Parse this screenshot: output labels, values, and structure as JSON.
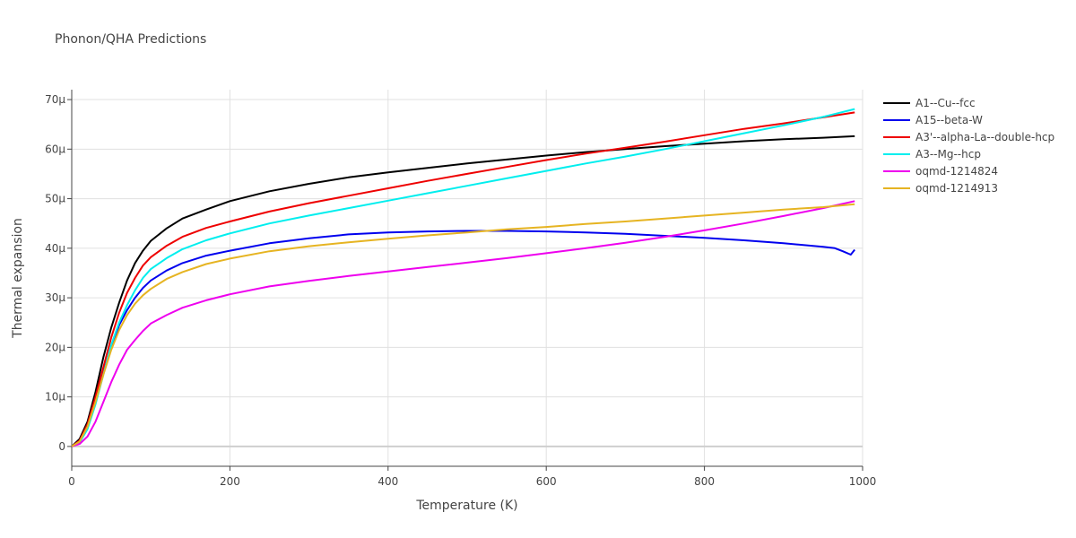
{
  "chart_data": {
    "type": "line",
    "title": "Phonon/QHA Predictions",
    "xlabel": "Temperature (K)",
    "ylabel": "Thermal expansion",
    "xlim": [
      0,
      1000
    ],
    "ylim": [
      -4,
      72
    ],
    "x_ticks": [
      0,
      200,
      400,
      600,
      800,
      1000
    ],
    "x_tick_labels": [
      "0",
      "200",
      "400",
      "600",
      "800",
      "1000"
    ],
    "y_ticks": [
      0,
      10,
      20,
      30,
      40,
      50,
      60,
      70
    ],
    "y_tick_labels": [
      "0",
      "10μ",
      "20μ",
      "30μ",
      "40μ",
      "50μ",
      "60μ",
      "70μ"
    ],
    "grid": true,
    "legend_position": "right",
    "series": [
      {
        "name": "A1--Cu--fcc",
        "color": "#000000",
        "x": [
          0,
          10,
          20,
          30,
          40,
          50,
          60,
          70,
          80,
          90,
          100,
          120,
          140,
          170,
          200,
          250,
          300,
          350,
          400,
          450,
          500,
          550,
          600,
          650,
          700,
          750,
          800,
          850,
          900,
          950,
          990
        ],
        "y": [
          0,
          1.5,
          5,
          11,
          18,
          24,
          29,
          33.5,
          37,
          39.5,
          41.5,
          44,
          46,
          47.8,
          49.5,
          51.5,
          53,
          54.3,
          55.3,
          56.2,
          57.1,
          57.9,
          58.7,
          59.4,
          60.0,
          60.6,
          61.1,
          61.6,
          62.0,
          62.3,
          62.6
        ]
      },
      {
        "name": "A15--beta-W",
        "color": "#0000ee",
        "x": [
          0,
          10,
          20,
          30,
          40,
          50,
          60,
          70,
          80,
          90,
          100,
          120,
          140,
          170,
          200,
          250,
          300,
          350,
          400,
          450,
          500,
          550,
          600,
          650,
          700,
          750,
          800,
          850,
          900,
          950,
          965,
          975,
          985,
          990
        ],
        "y": [
          0,
          1,
          4,
          9,
          15,
          20,
          24.5,
          27.5,
          30,
          32,
          33.5,
          35.5,
          37,
          38.5,
          39.5,
          41,
          42,
          42.8,
          43.2,
          43.4,
          43.5,
          43.5,
          43.4,
          43.2,
          42.9,
          42.5,
          42.1,
          41.6,
          41.0,
          40.3,
          40,
          39.4,
          38.7,
          39.7
        ]
      },
      {
        "name": "A3'--alpha-La--double-hcp",
        "color": "#ee0000",
        "x": [
          0,
          10,
          20,
          30,
          40,
          50,
          60,
          70,
          80,
          90,
          100,
          120,
          140,
          170,
          200,
          250,
          300,
          350,
          400,
          450,
          500,
          550,
          600,
          650,
          700,
          750,
          800,
          850,
          900,
          950,
          990
        ],
        "y": [
          0,
          1.2,
          4.5,
          10,
          16,
          22,
          27,
          31,
          34,
          36.5,
          38.2,
          40.5,
          42.3,
          44.1,
          45.4,
          47.4,
          49.1,
          50.6,
          52.1,
          53.6,
          55.0,
          56.4,
          57.8,
          59.1,
          60.3,
          61.5,
          62.8,
          64.1,
          65.2,
          66.4,
          67.4
        ]
      },
      {
        "name": "A3--Mg--hcp",
        "color": "#00eeee",
        "x": [
          0,
          10,
          20,
          30,
          40,
          50,
          60,
          70,
          80,
          90,
          100,
          120,
          140,
          170,
          200,
          250,
          300,
          350,
          400,
          450,
          500,
          550,
          600,
          650,
          700,
          750,
          800,
          850,
          900,
          950,
          990
        ],
        "y": [
          0,
          0.8,
          3.5,
          8.5,
          14.5,
          20.5,
          25,
          28.5,
          31.5,
          34,
          35.8,
          38,
          39.8,
          41.6,
          43,
          45,
          46.6,
          48.1,
          49.6,
          51.1,
          52.6,
          54.1,
          55.6,
          57.1,
          58.5,
          60.0,
          61.6,
          63.2,
          64.8,
          66.5,
          68.1
        ]
      },
      {
        "name": "oqmd-1214824",
        "color": "#ee00ee",
        "x": [
          0,
          10,
          20,
          30,
          40,
          50,
          60,
          70,
          80,
          90,
          100,
          120,
          140,
          170,
          200,
          250,
          300,
          350,
          400,
          450,
          500,
          550,
          600,
          650,
          700,
          750,
          800,
          850,
          900,
          950,
          990
        ],
        "y": [
          0,
          0.5,
          2,
          5,
          9,
          13,
          16.5,
          19.5,
          21.5,
          23.3,
          24.8,
          26.5,
          28,
          29.5,
          30.7,
          32.3,
          33.4,
          34.4,
          35.3,
          36.2,
          37.1,
          38.0,
          39.0,
          40.0,
          41.1,
          42.3,
          43.6,
          45.0,
          46.5,
          48.1,
          49.5
        ]
      },
      {
        "name": "oqmd-1214913",
        "color": "#e6b422",
        "x": [
          0,
          10,
          20,
          30,
          40,
          50,
          60,
          70,
          80,
          90,
          100,
          120,
          140,
          170,
          200,
          250,
          300,
          350,
          400,
          450,
          500,
          550,
          600,
          650,
          700,
          750,
          800,
          850,
          900,
          950,
          990
        ],
        "y": [
          0,
          1,
          4,
          9,
          14.5,
          19.5,
          23.5,
          26.5,
          28.8,
          30.5,
          31.8,
          33.8,
          35.2,
          36.8,
          37.9,
          39.4,
          40.4,
          41.2,
          41.9,
          42.6,
          43.2,
          43.8,
          44.3,
          44.9,
          45.4,
          46.0,
          46.6,
          47.2,
          47.8,
          48.3,
          48.9
        ]
      }
    ]
  }
}
